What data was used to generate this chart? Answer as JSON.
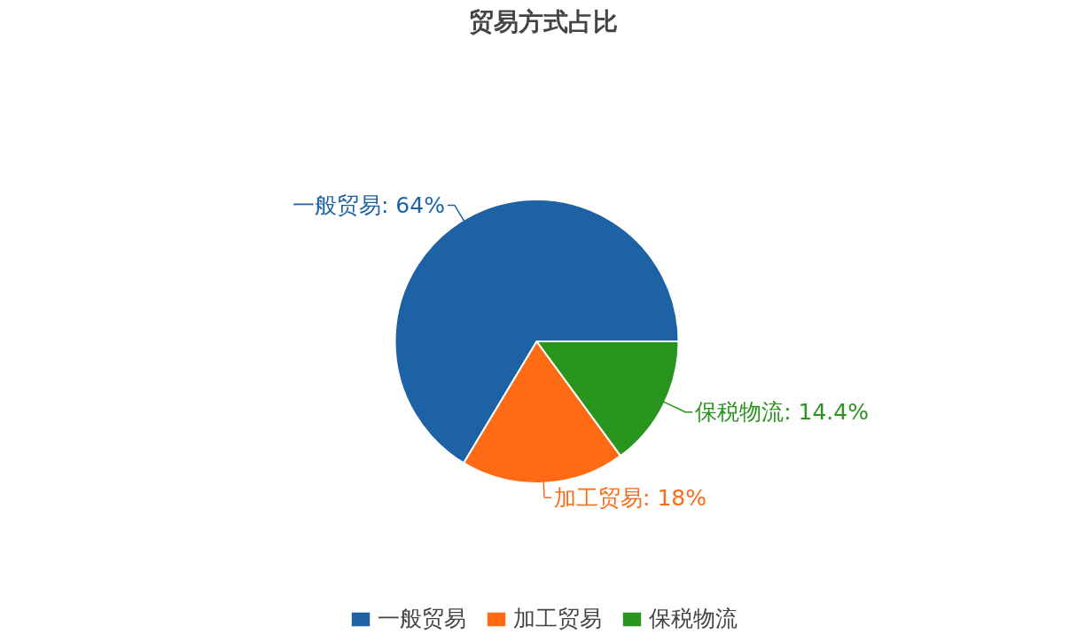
{
  "chart_data": {
    "type": "pie",
    "title": "贸易方式占比",
    "categories": [
      "一般贸易",
      "加工贸易",
      "保税物流"
    ],
    "values": [
      64,
      18,
      14.4
    ],
    "value_labels": [
      "一般贸易: 64%",
      "加工贸易: 18%",
      "保税物流: 14.4%"
    ],
    "colors": [
      "#1c62a5",
      "#fe6b14",
      "#29951f"
    ],
    "legend": "bottom"
  }
}
